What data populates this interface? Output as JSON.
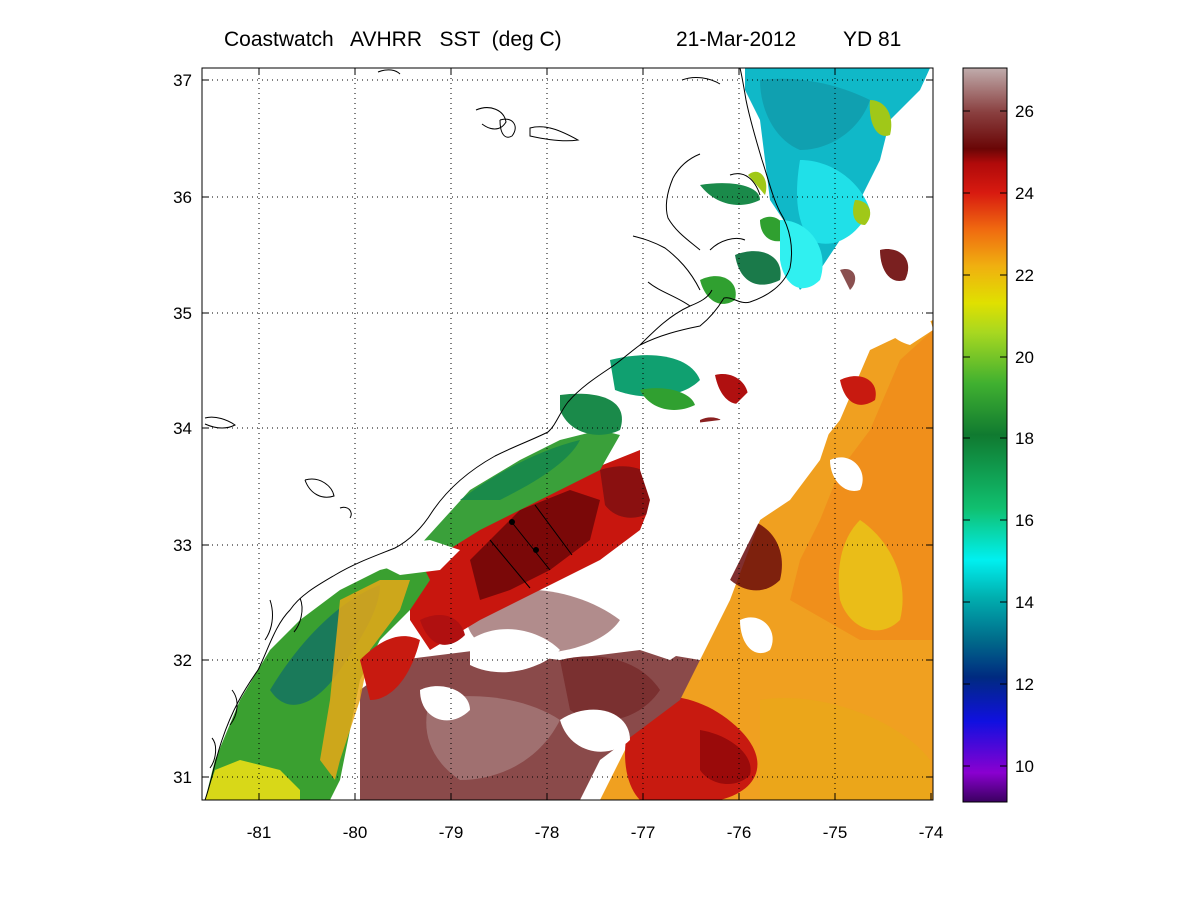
{
  "title": {
    "product": "Coastwatch   AVHRR   SST  (deg C)",
    "date": "21-Mar-2012",
    "yearday": "YD 81"
  },
  "map": {
    "x_ticks": [
      "-81",
      "-80",
      "-79",
      "-78",
      "-77",
      "-76",
      "-75",
      "-74"
    ],
    "y_ticks": [
      "37",
      "36",
      "35",
      "34",
      "33",
      "32",
      "31"
    ],
    "lon_range": [
      -81.6,
      -74
    ],
    "lat_range": [
      30.8,
      37.1
    ]
  },
  "colorbar": {
    "ticks": [
      "26",
      "24",
      "22",
      "20",
      "18",
      "16",
      "14",
      "12",
      "10"
    ],
    "range": [
      9,
      27
    ]
  },
  "colors": {
    "cold": "#7a00c8",
    "cyan": "#00e0e0",
    "green": "#3aaa3a",
    "yellow": "#e6e600",
    "orange": "#f08a1a",
    "red": "#cc1a10",
    "maroon": "#6a0a0a",
    "pinkgray": "#b89a9a"
  }
}
